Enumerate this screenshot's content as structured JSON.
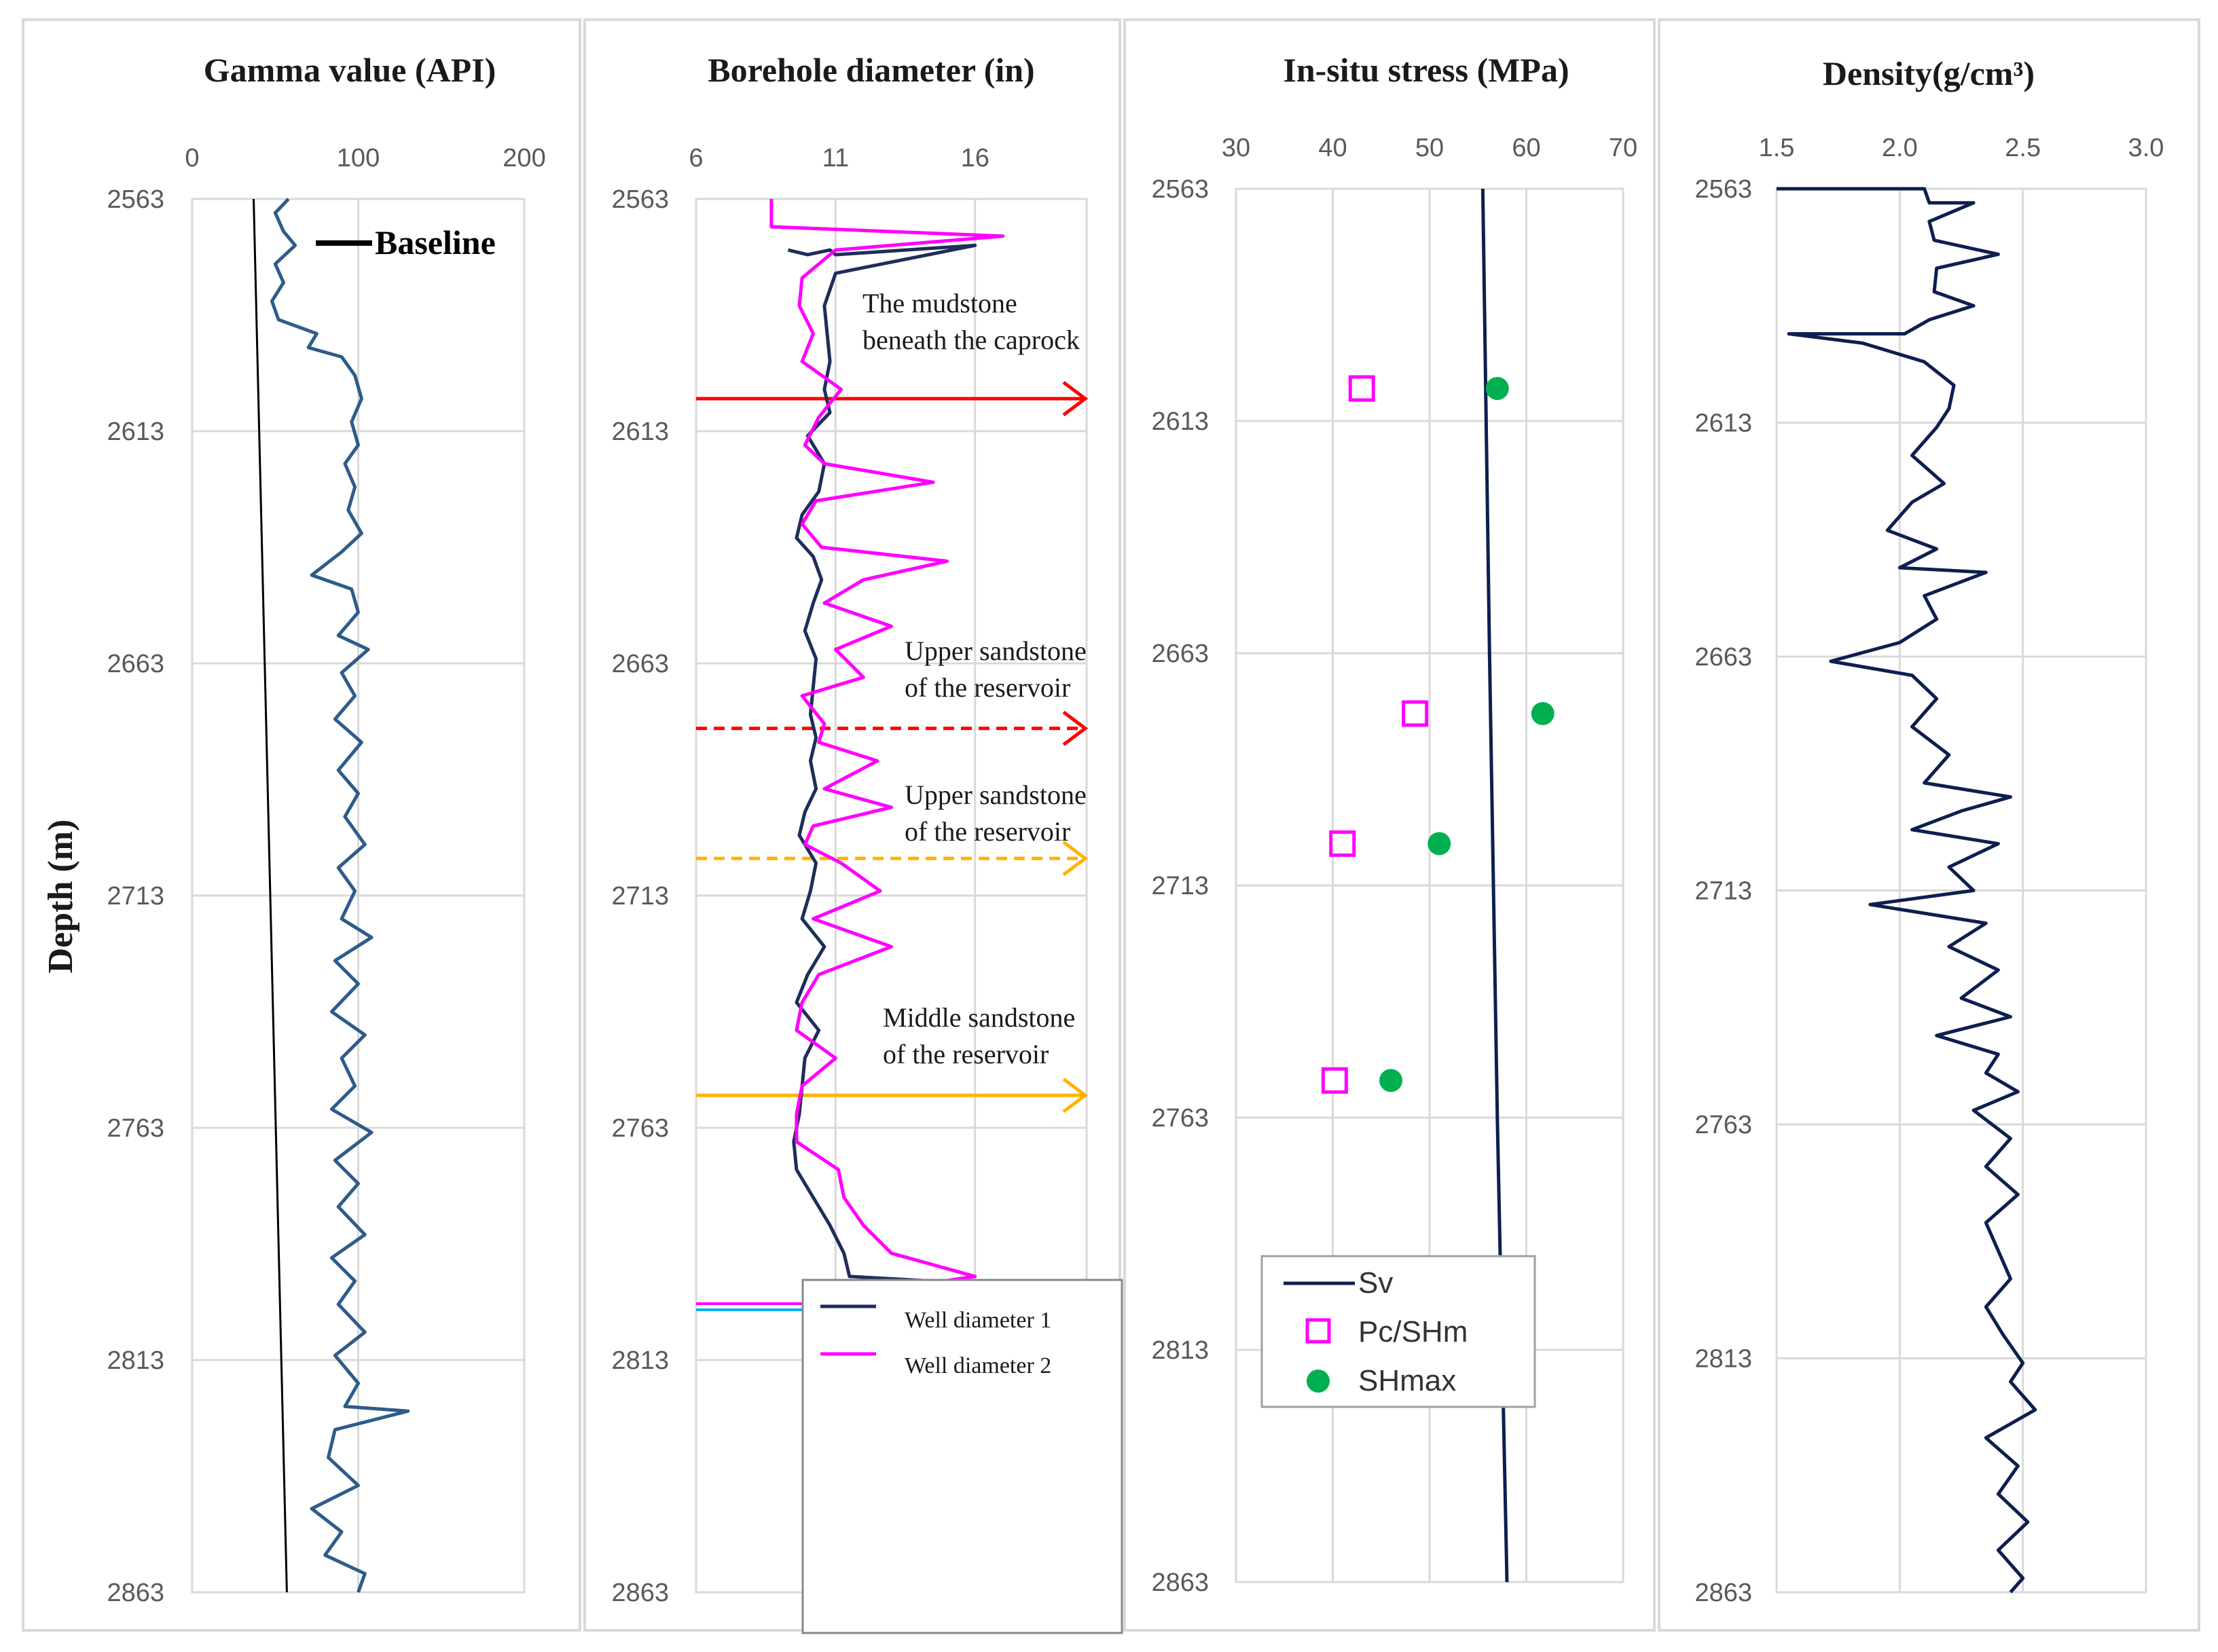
{
  "shared": {
    "y_label": "Depth (m)",
    "depth_ticks": [
      2563,
      2613,
      2663,
      2713,
      2763,
      2813,
      2863
    ]
  },
  "chart_data": [
    {
      "type": "line",
      "title": "Gamma value (API)",
      "xlim": [
        0,
        200
      ],
      "x_ticks": [
        0,
        100,
        200
      ],
      "ylim": [
        2563,
        2863
      ],
      "y_inverted": true,
      "grid": true,
      "annotations": [
        "Baseline"
      ],
      "series": [
        {
          "name": "Baseline",
          "color": "#000000",
          "points": [
            [
              37,
              2563
            ],
            [
              57,
              2863
            ]
          ]
        },
        {
          "name": "",
          "color": "#2e5c8a",
          "points": [
            [
              58,
              2563
            ],
            [
              50,
              2566
            ],
            [
              55,
              2570
            ],
            [
              62,
              2573
            ],
            [
              50,
              2577
            ],
            [
              55,
              2581
            ],
            [
              48,
              2585
            ],
            [
              52,
              2589
            ],
            [
              75,
              2592
            ],
            [
              70,
              2595
            ],
            [
              90,
              2597
            ],
            [
              98,
              2601
            ],
            [
              102,
              2606
            ],
            [
              96,
              2611
            ],
            [
              100,
              2616
            ],
            [
              92,
              2620
            ],
            [
              98,
              2625
            ],
            [
              94,
              2630
            ],
            [
              102,
              2635
            ],
            [
              90,
              2639
            ],
            [
              72,
              2644
            ],
            [
              96,
              2647
            ],
            [
              100,
              2652
            ],
            [
              88,
              2657
            ],
            [
              106,
              2660
            ],
            [
              90,
              2665
            ],
            [
              98,
              2670
            ],
            [
              86,
              2675
            ],
            [
              102,
              2680
            ],
            [
              88,
              2686
            ],
            [
              100,
              2691
            ],
            [
              92,
              2696
            ],
            [
              104,
              2702
            ],
            [
              88,
              2707
            ],
            [
              98,
              2712
            ],
            [
              90,
              2718
            ],
            [
              108,
              2722
            ],
            [
              86,
              2727
            ],
            [
              100,
              2732
            ],
            [
              84,
              2738
            ],
            [
              104,
              2743
            ],
            [
              90,
              2748
            ],
            [
              98,
              2754
            ],
            [
              84,
              2759
            ],
            [
              108,
              2764
            ],
            [
              86,
              2770
            ],
            [
              100,
              2775
            ],
            [
              88,
              2780
            ],
            [
              104,
              2786
            ],
            [
              84,
              2791
            ],
            [
              98,
              2796
            ],
            [
              88,
              2801
            ],
            [
              104,
              2807
            ],
            [
              86,
              2812
            ],
            [
              100,
              2818
            ],
            [
              92,
              2823
            ],
            [
              130,
              2824
            ],
            [
              86,
              2828
            ],
            [
              82,
              2834
            ],
            [
              100,
              2840
            ],
            [
              72,
              2845
            ],
            [
              90,
              2850
            ],
            [
              80,
              2855
            ],
            [
              104,
              2859
            ],
            [
              100,
              2863
            ]
          ]
        }
      ]
    },
    {
      "type": "line",
      "title": "Borehole diameter (in)",
      "xlim": [
        6,
        20
      ],
      "x_ticks": [
        6,
        11,
        16
      ],
      "ylim": [
        2563,
        2863
      ],
      "y_inverted": true,
      "grid": true,
      "legend": "bottom-center",
      "annotations": [
        "The mudstone",
        "beneath the caprock",
        "Upper sandstone",
        "of the reservoir",
        "Upper sandstone",
        "of the reservoir",
        "Middle sandstone",
        "of the reservoir"
      ],
      "markers": [
        {
          "depth": 2606,
          "color": "#ff0000",
          "style": "solid"
        },
        {
          "depth": 2677,
          "color": "#ff0000",
          "style": "dashed"
        },
        {
          "depth": 2705,
          "color": "#ffb300",
          "style": "dashed"
        },
        {
          "depth": 2756,
          "color": "#ffb300",
          "style": "solid"
        }
      ],
      "series": [
        {
          "name": "Well diameter 1",
          "color": "#1f2d5a",
          "points": [
            [
              9.3,
              2574
            ],
            [
              10,
              2575
            ],
            [
              10.8,
              2574
            ],
            [
              11,
              2575
            ],
            [
              16,
              2573
            ],
            [
              11,
              2579
            ],
            [
              10.6,
              2586
            ],
            [
              10.7,
              2592
            ],
            [
              10.8,
              2598
            ],
            [
              10.6,
              2604
            ],
            [
              10.8,
              2609
            ],
            [
              10,
              2614
            ],
            [
              10.6,
              2620
            ],
            [
              10.4,
              2626
            ],
            [
              9.8,
              2631
            ],
            [
              9.6,
              2636
            ],
            [
              10.2,
              2640
            ],
            [
              10.5,
              2645
            ],
            [
              10.2,
              2650
            ],
            [
              9.9,
              2656
            ],
            [
              10.3,
              2662
            ],
            [
              10.2,
              2668
            ],
            [
              10.1,
              2674
            ],
            [
              10.3,
              2679
            ],
            [
              10.1,
              2684
            ],
            [
              10.3,
              2690
            ],
            [
              9.9,
              2695
            ],
            [
              9.7,
              2700
            ],
            [
              10.3,
              2706
            ],
            [
              10.1,
              2712
            ],
            [
              9.8,
              2718
            ],
            [
              10.6,
              2724
            ],
            [
              10,
              2730
            ],
            [
              9.6,
              2736
            ],
            [
              10.4,
              2742
            ],
            [
              9.9,
              2748
            ],
            [
              9.8,
              2754
            ],
            [
              9.7,
              2760
            ],
            [
              9.5,
              2766
            ],
            [
              9.6,
              2772
            ],
            [
              10.2,
              2778
            ],
            [
              10.8,
              2784
            ],
            [
              11.3,
              2790
            ],
            [
              11.5,
              2795
            ],
            [
              14.5,
              2796
            ],
            [
              11,
              2800
            ],
            [
              10.8,
              2803
            ]
          ]
        },
        {
          "name": "Well diameter 2",
          "color": "#ff00ff",
          "points": [
            [
              8.7,
              2563
            ],
            [
              8.7,
              2569
            ],
            [
              17,
              2571
            ],
            [
              11,
              2574
            ],
            [
              10.4,
              2577
            ],
            [
              9.8,
              2580
            ],
            [
              9.7,
              2586
            ],
            [
              10.2,
              2592
            ],
            [
              9.8,
              2598
            ],
            [
              11.2,
              2604
            ],
            [
              10.4,
              2610
            ],
            [
              9.9,
              2616
            ],
            [
              10.6,
              2620
            ],
            [
              14.5,
              2624
            ],
            [
              10.3,
              2628
            ],
            [
              9.8,
              2633
            ],
            [
              10.5,
              2638
            ],
            [
              15,
              2641
            ],
            [
              12,
              2645
            ],
            [
              10.6,
              2650
            ],
            [
              13,
              2655
            ],
            [
              11,
              2660
            ],
            [
              12,
              2666
            ],
            [
              9.8,
              2670
            ],
            [
              10.6,
              2676
            ],
            [
              10.4,
              2680
            ],
            [
              12.5,
              2684
            ],
            [
              10.6,
              2690
            ],
            [
              13,
              2694
            ],
            [
              10.2,
              2698
            ],
            [
              9.9,
              2702
            ],
            [
              11.2,
              2706
            ],
            [
              12.6,
              2712
            ],
            [
              10.2,
              2718
            ],
            [
              13,
              2724
            ],
            [
              10.4,
              2730
            ],
            [
              9.8,
              2736
            ],
            [
              9.6,
              2742
            ],
            [
              11,
              2748
            ],
            [
              9.8,
              2754
            ],
            [
              9.6,
              2760
            ],
            [
              9.6,
              2766
            ],
            [
              11.1,
              2772
            ],
            [
              11.3,
              2778
            ],
            [
              12,
              2784
            ],
            [
              13,
              2790
            ],
            [
              16,
              2795
            ],
            [
              11.4,
              2799
            ],
            [
              10.6,
              2803
            ]
          ]
        }
      ]
    },
    {
      "type": "scatter",
      "title": "In-situ stress (MPa)",
      "xlim": [
        30,
        70
      ],
      "x_ticks": [
        30,
        40,
        50,
        60,
        70
      ],
      "ylim": [
        2563,
        2863
      ],
      "y_inverted": true,
      "grid": true,
      "legend": "bottom-left",
      "series": [
        {
          "name": "Sv",
          "kind": "line",
          "color": "#0d1f4f",
          "points": [
            [
              55.5,
              2563
            ],
            [
              56.2,
              2663
            ],
            [
              57,
              2763
            ],
            [
              58,
              2863
            ]
          ]
        },
        {
          "name": "Pc/SHm",
          "kind": "marker-square",
          "color": "#ff00ff",
          "points": [
            [
              43,
              2606
            ],
            [
              48.5,
              2676
            ],
            [
              41,
              2704
            ],
            [
              40.2,
              2755
            ]
          ]
        },
        {
          "name": "SHmax",
          "kind": "marker-circle",
          "color": "#00b050",
          "points": [
            [
              57,
              2606
            ],
            [
              61.7,
              2676
            ],
            [
              51,
              2704
            ],
            [
              46,
              2755
            ]
          ]
        }
      ]
    },
    {
      "type": "line",
      "title": "Density(g/cm³)",
      "xlim": [
        1.5,
        3.0
      ],
      "x_ticks": [
        "1.5",
        "2.0",
        "2.5",
        "3.0"
      ],
      "ylim": [
        2563,
        2863
      ],
      "y_inverted": true,
      "grid": true,
      "series": [
        {
          "name": "",
          "color": "#0d1f4f",
          "points": [
            [
              1.5,
              2563
            ],
            [
              2.1,
              2563
            ],
            [
              2.12,
              2566
            ],
            [
              2.3,
              2566
            ],
            [
              2.12,
              2570
            ],
            [
              2.14,
              2574
            ],
            [
              2.4,
              2577
            ],
            [
              2.15,
              2580
            ],
            [
              2.14,
              2585
            ],
            [
              2.3,
              2588
            ],
            [
              2.12,
              2591
            ],
            [
              2.02,
              2594
            ],
            [
              1.55,
              2594
            ],
            [
              1.85,
              2596
            ],
            [
              2.1,
              2600
            ],
            [
              2.22,
              2605
            ],
            [
              2.2,
              2610
            ],
            [
              2.15,
              2614
            ],
            [
              2.05,
              2620
            ],
            [
              2.18,
              2626
            ],
            [
              2.05,
              2630
            ],
            [
              1.95,
              2636
            ],
            [
              2.15,
              2640
            ],
            [
              2.0,
              2644
            ],
            [
              2.35,
              2645
            ],
            [
              2.1,
              2650
            ],
            [
              2.15,
              2655
            ],
            [
              2.0,
              2660
            ],
            [
              1.72,
              2664
            ],
            [
              2.05,
              2667
            ],
            [
              2.15,
              2672
            ],
            [
              2.05,
              2678
            ],
            [
              2.2,
              2684
            ],
            [
              2.1,
              2690
            ],
            [
              2.45,
              2693
            ],
            [
              2.25,
              2696
            ],
            [
              2.05,
              2700
            ],
            [
              2.4,
              2703
            ],
            [
              2.2,
              2708
            ],
            [
              2.3,
              2713
            ],
            [
              1.88,
              2716
            ],
            [
              2.35,
              2720
            ],
            [
              2.2,
              2725
            ],
            [
              2.4,
              2730
            ],
            [
              2.25,
              2736
            ],
            [
              2.45,
              2740
            ],
            [
              2.15,
              2744
            ],
            [
              2.4,
              2748
            ],
            [
              2.35,
              2752
            ],
            [
              2.48,
              2756
            ],
            [
              2.3,
              2760
            ],
            [
              2.45,
              2766
            ],
            [
              2.35,
              2772
            ],
            [
              2.48,
              2778
            ],
            [
              2.35,
              2784
            ],
            [
              2.4,
              2790
            ],
            [
              2.45,
              2796
            ],
            [
              2.35,
              2802
            ],
            [
              2.42,
              2808
            ],
            [
              2.5,
              2814
            ],
            [
              2.45,
              2818
            ],
            [
              2.55,
              2824
            ],
            [
              2.35,
              2830
            ],
            [
              2.48,
              2836
            ],
            [
              2.4,
              2842
            ],
            [
              2.52,
              2848
            ],
            [
              2.4,
              2854
            ],
            [
              2.5,
              2860
            ],
            [
              2.45,
              2863
            ]
          ]
        }
      ]
    }
  ]
}
